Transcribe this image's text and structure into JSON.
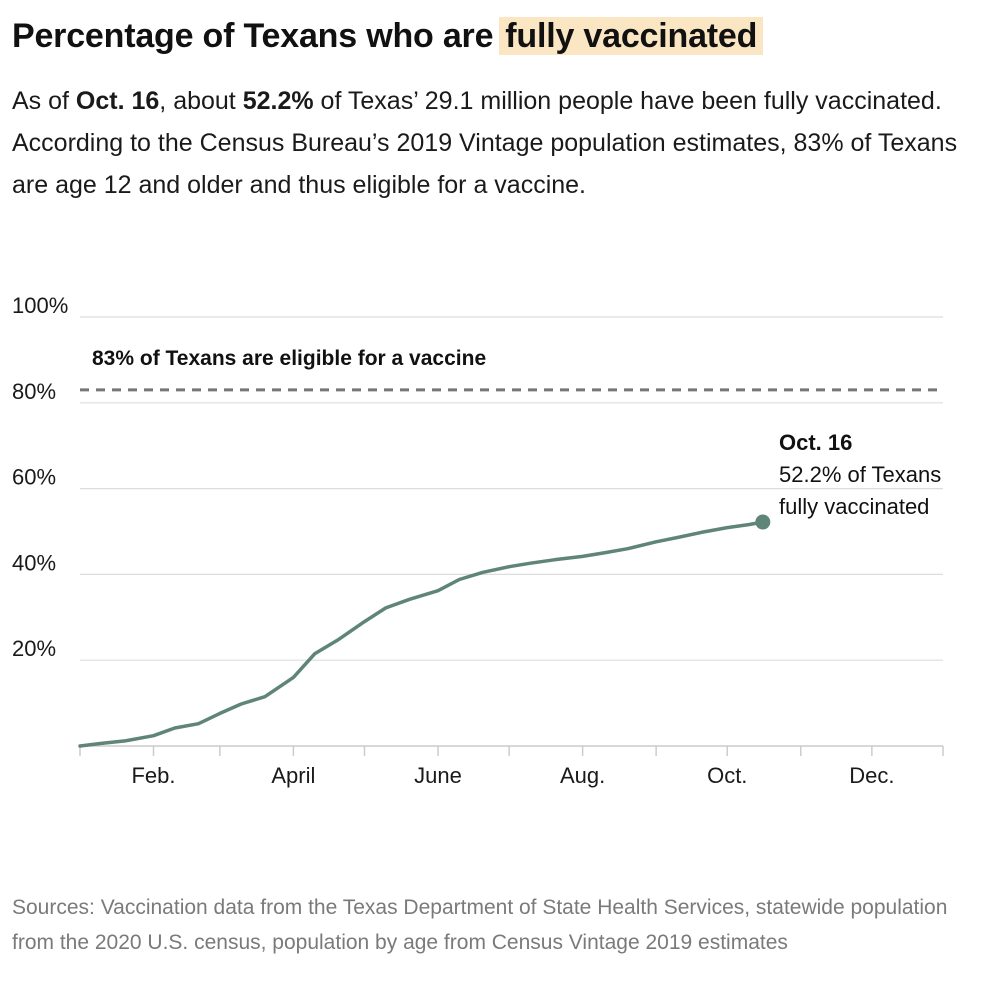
{
  "header": {
    "title_main": "Percentage of Texans who are",
    "title_highlight": "fully vaccinated"
  },
  "intro": {
    "p1": "As of ",
    "b1": "Oct. 16",
    "p2": ", about ",
    "b2": "52.2%",
    "p3": " of Texas’ 29.1 million people have been fully vaccinated. According to the Census Bureau’s 2019 Vintage population estimates, 83% of Texans are age 12 and older and thus eligible for a vaccine."
  },
  "source": "Sources: Vaccination data from the Texas Department of State Health Services, statewide population from the 2020 U.S. census, population by age from Census Vintage 2019 estimates",
  "colors": {
    "line": "#5f8579",
    "reference_line": "#777777",
    "gridline": "#dddddd",
    "title_highlight_bg": "#fbe6c3",
    "source_text": "#7a7a7a"
  },
  "chart_data": {
    "type": "line",
    "xlabel": "",
    "ylabel": "",
    "ylim": [
      0,
      100
    ],
    "xlim": [
      "2021-01-01",
      "2021-12-31"
    ],
    "grid": true,
    "y_ticks": [
      {
        "value": 20,
        "label": "20%"
      },
      {
        "value": 40,
        "label": "40%"
      },
      {
        "value": 60,
        "label": "60%"
      },
      {
        "value": 80,
        "label": "80%"
      },
      {
        "value": 100,
        "label": "100%"
      }
    ],
    "x_ticks": [
      {
        "date": "2021-02-01",
        "label": "Feb."
      },
      {
        "date": "2021-04-01",
        "label": "April"
      },
      {
        "date": "2021-06-01",
        "label": "June"
      },
      {
        "date": "2021-08-01",
        "label": "Aug."
      },
      {
        "date": "2021-10-01",
        "label": "Oct."
      },
      {
        "date": "2021-12-01",
        "label": "Dec."
      }
    ],
    "x_minor_ticks": [
      "2021-01-01",
      "2021-03-01",
      "2021-05-01",
      "2021-07-01",
      "2021-09-01",
      "2021-11-01",
      "2021-12-31"
    ],
    "reference_line": {
      "value": 83,
      "label": "83% of Texans are eligible for a vaccine"
    },
    "series": [
      {
        "x": [
          "2021-01-01",
          "2021-01-10",
          "2021-01-20",
          "2021-02-01",
          "2021-02-10",
          "2021-02-20",
          "2021-03-01",
          "2021-03-10",
          "2021-03-20",
          "2021-04-01",
          "2021-04-10",
          "2021-04-20",
          "2021-05-01",
          "2021-05-10",
          "2021-05-20",
          "2021-06-01",
          "2021-06-10",
          "2021-06-20",
          "2021-07-01",
          "2021-07-10",
          "2021-07-20",
          "2021-08-01",
          "2021-08-10",
          "2021-08-20",
          "2021-09-01",
          "2021-09-10",
          "2021-09-20",
          "2021-10-01",
          "2021-10-10",
          "2021-10-16"
        ],
        "y": [
          0,
          0.6,
          1.2,
          2.4,
          4.2,
          5.2,
          7.6,
          9.8,
          11.5,
          16.0,
          21.5,
          24.8,
          29.0,
          32.2,
          34.2,
          36.2,
          38.8,
          40.5,
          41.8,
          42.6,
          43.4,
          44.2,
          45.0,
          46.0,
          47.6,
          48.6,
          49.8,
          50.9,
          51.6,
          52.2
        ]
      }
    ],
    "annotation": {
      "date": "2021-10-16",
      "value": 52.2,
      "title": "Oct. 16",
      "line1": "52.2% of Texans",
      "line2": "fully vaccinated"
    }
  }
}
